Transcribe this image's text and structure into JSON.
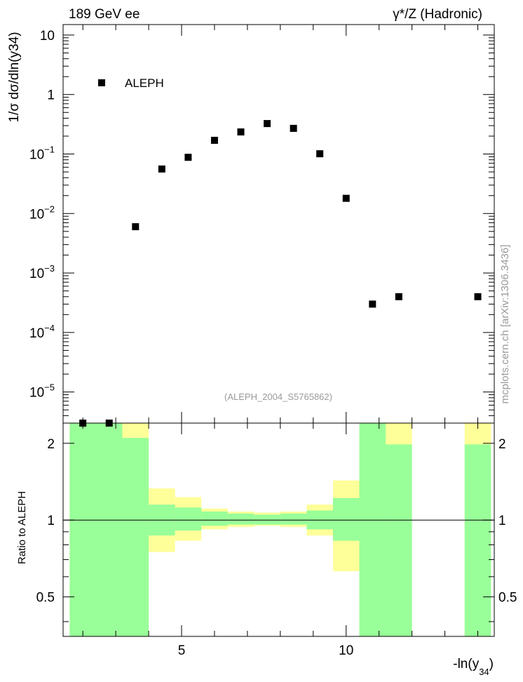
{
  "header": {
    "left_label": "189 GeV ee",
    "right_label": "γ*/Z (Hadronic)"
  },
  "watermark": {
    "side_text": "mcplots.cern.ch [arXiv:1306.3436]",
    "analysis_id": "(ALEPH_2004_S5765862)"
  },
  "chart_data": [
    {
      "type": "scatter",
      "title": "",
      "xlabel": "-ln(y34)",
      "ylabel": "1/σ dσ/dln(y34)",
      "y_scale": "log",
      "xlim": [
        1.4,
        14.5
      ],
      "ylim": [
        3e-06,
        15
      ],
      "y_ticks": [
        {
          "value": 10,
          "label": "10"
        },
        {
          "value": 1,
          "label": "1"
        },
        {
          "value": 0.1,
          "label": "10",
          "exp": "−1"
        },
        {
          "value": 0.01,
          "label": "10",
          "exp": "−2"
        },
        {
          "value": 0.001,
          "label": "10",
          "exp": "−3"
        },
        {
          "value": 0.0001,
          "label": "10",
          "exp": "−4"
        },
        {
          "value": 1e-05,
          "label": "10",
          "exp": "−5"
        }
      ],
      "legend": {
        "position": "top-left",
        "entries": [
          "ALEPH"
        ]
      },
      "series": [
        {
          "name": "ALEPH",
          "points": [
            {
              "x": 2.0,
              "y": 2.9e-06
            },
            {
              "x": 2.8,
              "y": 2.9e-06
            },
            {
              "x": 3.6,
              "y": 0.006
            },
            {
              "x": 4.4,
              "y": 0.056
            },
            {
              "x": 5.2,
              "y": 0.088
            },
            {
              "x": 6.0,
              "y": 0.17
            },
            {
              "x": 6.8,
              "y": 0.235
            },
            {
              "x": 7.6,
              "y": 0.325
            },
            {
              "x": 8.4,
              "y": 0.27
            },
            {
              "x": 9.2,
              "y": 0.101
            },
            {
              "x": 10.0,
              "y": 0.018
            },
            {
              "x": 10.8,
              "y": 0.0003
            },
            {
              "x": 11.6,
              "y": 0.0004
            },
            {
              "x": 14.0,
              "y": 0.0004
            }
          ]
        }
      ]
    },
    {
      "type": "area",
      "title": "",
      "xlabel": "-ln(y34)",
      "ylabel": "Ratio to ALEPH",
      "y_scale": "log",
      "xlim": [
        1.4,
        14.5
      ],
      "ylim": [
        0.35,
        2.4
      ],
      "x_ticks": [
        {
          "value": 5,
          "label": "5"
        },
        {
          "value": 10,
          "label": "10"
        }
      ],
      "y_ticks": [
        {
          "value": 2,
          "label": "2"
        },
        {
          "value": 1,
          "label": "1"
        },
        {
          "value": 0.5,
          "label": "0.5"
        }
      ],
      "reference_line": 1,
      "bins": [
        {
          "x0": 1.6,
          "x1": 3.2,
          "stat": [
            0.35,
            2.4
          ],
          "total": [
            0.35,
            2.4
          ]
        },
        {
          "x0": 3.2,
          "x1": 4.0,
          "stat": [
            0.35,
            2.1
          ],
          "total": [
            0.35,
            2.4
          ]
        },
        {
          "x0": 4.0,
          "x1": 4.8,
          "stat": [
            0.87,
            1.15
          ],
          "total": [
            0.75,
            1.33
          ]
        },
        {
          "x0": 4.8,
          "x1": 5.6,
          "stat": [
            0.91,
            1.12
          ],
          "total": [
            0.83,
            1.23
          ]
        },
        {
          "x0": 5.6,
          "x1": 6.4,
          "stat": [
            0.95,
            1.08
          ],
          "total": [
            0.92,
            1.11
          ]
        },
        {
          "x0": 6.4,
          "x1": 7.2,
          "stat": [
            0.96,
            1.06
          ],
          "total": [
            0.94,
            1.08
          ]
        },
        {
          "x0": 7.2,
          "x1": 8.0,
          "stat": [
            0.96,
            1.05
          ],
          "total": [
            0.95,
            1.07
          ]
        },
        {
          "x0": 8.0,
          "x1": 8.8,
          "stat": [
            0.96,
            1.06
          ],
          "total": [
            0.94,
            1.08
          ]
        },
        {
          "x0": 8.8,
          "x1": 9.6,
          "stat": [
            0.92,
            1.09
          ],
          "total": [
            0.87,
            1.15
          ]
        },
        {
          "x0": 9.6,
          "x1": 10.4,
          "stat": [
            0.83,
            1.22
          ],
          "total": [
            0.63,
            1.43
          ]
        },
        {
          "x0": 10.4,
          "x1": 11.2,
          "stat": [
            0.35,
            2.4
          ],
          "total": [
            0.35,
            2.4
          ]
        },
        {
          "x0": 11.2,
          "x1": 12.0,
          "stat": [
            0.35,
            1.98
          ],
          "total": [
            0.35,
            2.4
          ]
        },
        {
          "x0": 13.6,
          "x1": 14.4,
          "stat": [
            0.35,
            1.98
          ],
          "total": [
            0.35,
            2.4
          ]
        }
      ],
      "colors": {
        "stat": "#99ff99",
        "total": "#ffff99",
        "marker": "#000000"
      }
    }
  ]
}
